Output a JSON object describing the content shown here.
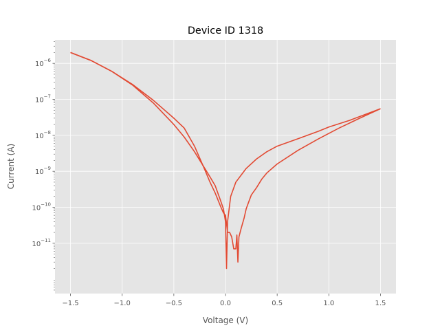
{
  "chart_data": {
    "type": "line",
    "title": "Device ID 1318",
    "xlabel": "Voltage (V)",
    "ylabel": "Current (A)",
    "x_scale": "linear",
    "y_scale": "log",
    "xlim": [
      -1.65,
      1.65
    ],
    "ylim": [
      4e-13,
      4.5e-06
    ],
    "x_ticks": [
      -1.5,
      -1.0,
      -0.5,
      0.0,
      0.5,
      1.0,
      1.5
    ],
    "x_tick_labels": [
      "−1.5",
      "−1.0",
      "−0.5",
      "0.0",
      "0.5",
      "1.0",
      "1.5"
    ],
    "y_ticks": [
      1e-11,
      1e-10,
      1e-09,
      1e-08,
      1e-07,
      1e-06
    ],
    "y_tick_labels": [
      {
        "base": "10",
        "exp": "−11"
      },
      {
        "base": "10",
        "exp": "−10"
      },
      {
        "base": "10",
        "exp": "−9"
      },
      {
        "base": "10",
        "exp": "−8"
      },
      {
        "base": "10",
        "exp": "−7"
      },
      {
        "base": "10",
        "exp": "−6"
      }
    ],
    "grid": true,
    "style": {
      "background": "#e5e5e5",
      "grid_color": "#ffffff",
      "line_color": "#e24a33"
    },
    "series": [
      {
        "points": [
          [
            -1.5,
            2e-06
          ],
          [
            -1.3,
            1.2e-06
          ],
          [
            -1.1,
            6e-07
          ],
          [
            -0.9,
            2.5e-07
          ],
          [
            -0.7,
            8e-08
          ],
          [
            -0.5,
            2e-08
          ],
          [
            -0.4,
            9e-09
          ],
          [
            -0.3,
            3.5e-09
          ],
          [
            -0.2,
            1.2e-09
          ],
          [
            -0.15,
            7e-10
          ],
          [
            -0.1,
            4e-10
          ],
          [
            -0.05,
            1.6e-10
          ],
          [
            -0.02,
            9e-11
          ],
          [
            0.0,
            4e-11
          ],
          [
            0.01,
            2e-12
          ],
          [
            0.02,
            4e-11
          ],
          [
            0.05,
            2e-10
          ],
          [
            0.1,
            5e-10
          ],
          [
            0.2,
            1.2e-09
          ],
          [
            0.3,
            2.2e-09
          ],
          [
            0.4,
            3.5e-09
          ],
          [
            0.5,
            5e-09
          ],
          [
            0.7,
            8e-09
          ],
          [
            0.9,
            1.3e-08
          ],
          [
            1.0,
            1.7e-08
          ],
          [
            1.2,
            2.6e-08
          ],
          [
            1.4,
            4.3e-08
          ],
          [
            1.5,
            5.5e-08
          ]
        ]
      },
      {
        "points": [
          [
            1.5,
            5.5e-08
          ],
          [
            1.3,
            3e-08
          ],
          [
            1.1,
            1.6e-08
          ],
          [
            0.9,
            8e-09
          ],
          [
            0.7,
            3.8e-09
          ],
          [
            0.5,
            1.6e-09
          ],
          [
            0.4,
            9e-10
          ],
          [
            0.35,
            6e-10
          ],
          [
            0.3,
            3.5e-10
          ],
          [
            0.25,
            2.2e-10
          ],
          [
            0.22,
            1.3e-10
          ],
          [
            0.2,
            9e-11
          ],
          [
            0.18,
            5e-11
          ],
          [
            0.15,
            2.5e-11
          ],
          [
            0.13,
            1.5e-11
          ],
          [
            0.12,
            3e-12
          ],
          [
            0.11,
            1.7e-11
          ],
          [
            0.1,
            7e-12
          ],
          [
            0.08,
            7e-12
          ],
          [
            0.06,
            1.5e-11
          ],
          [
            0.04,
            2e-11
          ],
          [
            0.02,
            2e-11
          ],
          [
            0.01,
            3.5e-11
          ],
          [
            0.0,
            6e-11
          ],
          [
            -0.02,
            7e-11
          ],
          [
            -0.05,
            1.1e-10
          ],
          [
            -0.1,
            2.5e-10
          ],
          [
            -0.15,
            5e-10
          ],
          [
            -0.2,
            1.1e-09
          ],
          [
            -0.3,
            5e-09
          ],
          [
            -0.4,
            1.6e-08
          ],
          [
            -0.5,
            3e-08
          ],
          [
            -0.7,
            9.5e-08
          ],
          [
            -0.9,
            2.6e-07
          ],
          [
            -1.1,
            6e-07
          ],
          [
            -1.3,
            1.2e-06
          ],
          [
            -1.5,
            2e-06
          ]
        ]
      }
    ]
  }
}
